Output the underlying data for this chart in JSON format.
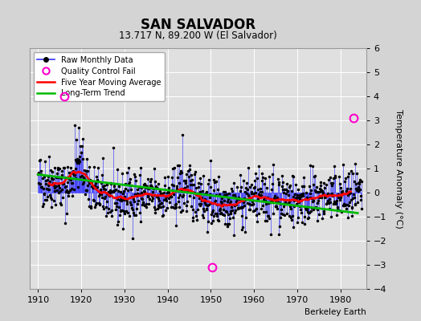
{
  "title": "SAN SALVADOR",
  "subtitle": "13.717 N, 89.200 W (El Salvador)",
  "ylabel": "Temperature Anomaly (°C)",
  "credit": "Berkeley Earth",
  "xlim": [
    1908,
    1986
  ],
  "ylim": [
    -4,
    6
  ],
  "yticks": [
    -4,
    -3,
    -2,
    -1,
    0,
    1,
    2,
    3,
    4,
    5,
    6
  ],
  "xticks": [
    1910,
    1920,
    1930,
    1940,
    1950,
    1960,
    1970,
    1980
  ],
  "background_color": "#d4d4d4",
  "plot_bg_color": "#e0e0e0",
  "grid_color": "#ffffff",
  "raw_color": "#3333ff",
  "raw_dot_color": "#000000",
  "ma_color": "#ff0000",
  "trend_color": "#00bb00",
  "qc_color": "#ff00cc",
  "seed": 42,
  "n_years": 75,
  "start_year": 1910
}
